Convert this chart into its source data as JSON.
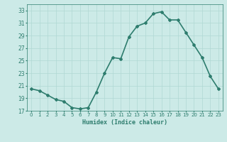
{
  "x": [
    0,
    1,
    2,
    3,
    4,
    5,
    6,
    7,
    8,
    9,
    10,
    11,
    12,
    13,
    14,
    15,
    16,
    17,
    18,
    19,
    20,
    21,
    22,
    23
  ],
  "y": [
    20.5,
    20.2,
    19.5,
    18.8,
    18.5,
    17.5,
    17.3,
    17.5,
    20.0,
    23.0,
    25.5,
    25.3,
    28.8,
    30.5,
    31.0,
    32.5,
    32.8,
    31.5,
    31.5,
    29.5,
    27.5,
    25.5,
    22.5,
    20.5
  ],
  "xlabel": "Humidex (Indice chaleur)",
  "ylabel": "",
  "ylim": [
    17,
    34
  ],
  "xlim": [
    -0.5,
    23.5
  ],
  "yticks": [
    17,
    19,
    21,
    23,
    25,
    27,
    29,
    31,
    33
  ],
  "xtick_labels": [
    "0",
    "1",
    "2",
    "3",
    "4",
    "5",
    "6",
    "7",
    "8",
    "9",
    "10",
    "11",
    "12",
    "13",
    "14",
    "15",
    "16",
    "17",
    "18",
    "19",
    "20",
    "21",
    "22",
    "23"
  ],
  "line_color": "#2e7d6e",
  "marker": "D",
  "marker_size": 2.0,
  "bg_color": "#cceae7",
  "grid_color": "#b0d8d4",
  "xlabel_color": "#2e7d6e",
  "tick_color": "#2e7d6e",
  "line_width": 1.2,
  "xlabel_fontsize": 6.0,
  "ytick_fontsize": 5.5,
  "xtick_fontsize": 5.0
}
